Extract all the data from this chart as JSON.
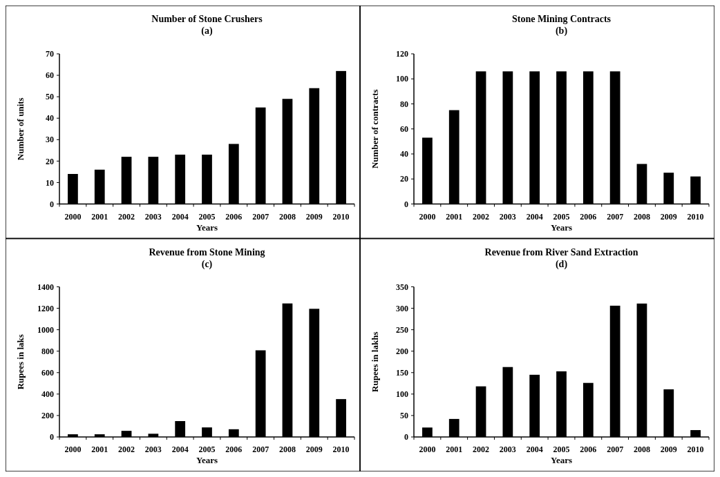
{
  "chart_data": [
    {
      "type": "bar",
      "title": "Number of Stone Crushers",
      "subtitle": "(a)",
      "xlabel": "Years",
      "ylabel": "Number of units",
      "categories": [
        "2000",
        "2001",
        "2002",
        "2003",
        "2004",
        "2005",
        "2006",
        "2007",
        "2008",
        "2009",
        "2010"
      ],
      "values": [
        14,
        16,
        22,
        22,
        23,
        23,
        28,
        45,
        49,
        54,
        62
      ],
      "color": "#000000",
      "ylim": [
        0,
        70
      ],
      "yticks": [
        0,
        10,
        20,
        30,
        40,
        50,
        60,
        70
      ],
      "grid": false
    },
    {
      "type": "bar",
      "title": "Stone Mining Contracts",
      "subtitle": "(b)",
      "xlabel": "Years",
      "ylabel": "Number of contracts",
      "categories": [
        "2000",
        "2001",
        "2002",
        "2003",
        "2004",
        "2005",
        "2006",
        "2007",
        "2008",
        "2009",
        "2010"
      ],
      "values": [
        53,
        75,
        106,
        106,
        106,
        106,
        106,
        106,
        32,
        25,
        22
      ],
      "color": "#000000",
      "ylim": [
        0,
        120
      ],
      "yticks": [
        0,
        20,
        40,
        60,
        80,
        100,
        120
      ],
      "grid": false
    },
    {
      "type": "bar",
      "title": "Revenue from Stone Mining",
      "subtitle": "(c)",
      "xlabel": "Years",
      "ylabel": "Rupees in laks",
      "categories": [
        "2000",
        "2001",
        "2002",
        "2003",
        "2004",
        "2005",
        "2006",
        "2007",
        "2008",
        "2009",
        "2010"
      ],
      "values": [
        25,
        25,
        57,
        30,
        148,
        89,
        72,
        808,
        1245,
        1195,
        353
      ],
      "color": "#000000",
      "ylim": [
        0,
        1400
      ],
      "yticks": [
        0,
        200,
        400,
        600,
        800,
        1000,
        1200,
        1400
      ],
      "grid": false
    },
    {
      "type": "bar",
      "title": "Revenue from River Sand Extraction",
      "subtitle": "(d)",
      "xlabel": "Years",
      "ylabel": "Rupees in lakhs",
      "categories": [
        "2000",
        "2001",
        "2002",
        "2003",
        "2004",
        "2005",
        "2006",
        "2007",
        "2008",
        "2009",
        "2010"
      ],
      "values": [
        22,
        42,
        118,
        163,
        145,
        153,
        126,
        306,
        311,
        111,
        16
      ],
      "color": "#000000",
      "ylim": [
        0,
        350
      ],
      "yticks": [
        0,
        50,
        100,
        150,
        200,
        250,
        300,
        350
      ],
      "grid": false
    }
  ]
}
